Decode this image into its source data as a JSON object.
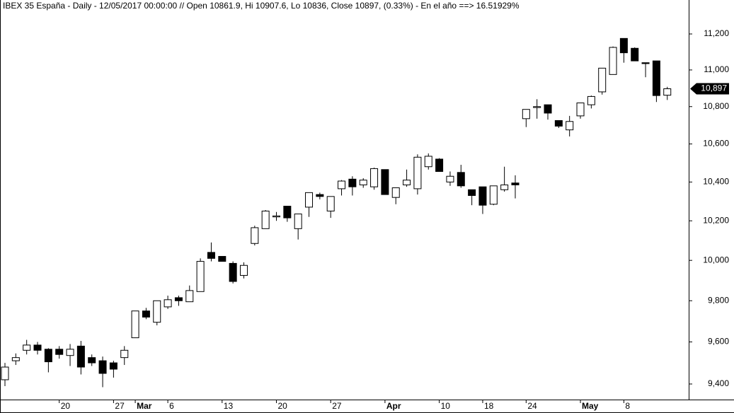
{
  "chart_data": {
    "type": "candlestick",
    "title": "IBEX 35 España - Daily - 12/05/2017 00:00:00 // Open 10861.9, Hi 10907.6, Lo 10836, Close 10897, (0.33%) - En el año ==> 16.51929%",
    "categories": [
      null,
      null,
      null,
      null,
      null,
      "20",
      null,
      null,
      null,
      null,
      "27",
      null,
      "Mar",
      null,
      null,
      "6",
      null,
      null,
      null,
      null,
      "13",
      null,
      null,
      null,
      null,
      "20",
      null,
      null,
      null,
      null,
      "27",
      null,
      null,
      null,
      null,
      "Apr",
      null,
      null,
      null,
      null,
      "10",
      null,
      null,
      null,
      "18",
      null,
      null,
      null,
      "24",
      null,
      null,
      null,
      null,
      "May",
      null,
      null,
      null,
      "8",
      null,
      null,
      null,
      null
    ],
    "open": [
      9420,
      9510,
      9560,
      9585,
      9565,
      9565,
      9535,
      9580,
      9525,
      9510,
      9500,
      9525,
      9620,
      9750,
      9695,
      9770,
      9815,
      9795,
      9845,
      10040,
      10020,
      9985,
      9925,
      10085,
      10160,
      10220,
      10275,
      10160,
      10270,
      10335,
      10250,
      10365,
      10415,
      10385,
      10375,
      10465,
      10320,
      10385,
      10365,
      10480,
      10520,
      10400,
      10450,
      10360,
      10375,
      10285,
      10360,
      10395,
      10735,
      10795,
      10810,
      10725,
      10675,
      10750,
      10810,
      10880,
      10975,
      11175,
      11120,
      11040,
      11050,
      10861.9
    ],
    "high": [
      9500,
      9545,
      9610,
      9600,
      9570,
      9580,
      9590,
      9605,
      9540,
      9530,
      9510,
      9580,
      9750,
      9765,
      9800,
      9825,
      9825,
      9875,
      10010,
      10090,
      10020,
      9995,
      9990,
      10175,
      10255,
      10245,
      10275,
      10235,
      10345,
      10345,
      10325,
      10410,
      10430,
      10420,
      10475,
      10465,
      10370,
      10465,
      10545,
      10550,
      10525,
      10455,
      10490,
      10360,
      10375,
      10380,
      10480,
      10435,
      10785,
      10840,
      10810,
      10725,
      10750,
      10820,
      10860,
      11010,
      11130,
      11175,
      11125,
      11040,
      11050,
      10907.6
    ],
    "low": [
      9390,
      9490,
      9540,
      9540,
      9455,
      9520,
      9485,
      9445,
      9485,
      9385,
      9430,
      9490,
      9620,
      9710,
      9680,
      9760,
      9775,
      9795,
      9845,
      9995,
      9995,
      9885,
      9910,
      10075,
      10160,
      10200,
      10195,
      10105,
      10220,
      10310,
      10215,
      10330,
      10330,
      10370,
      10360,
      10335,
      10285,
      10375,
      10335,
      10465,
      10455,
      10380,
      10370,
      10280,
      10235,
      10280,
      10350,
      10315,
      10690,
      10735,
      10730,
      10685,
      10640,
      10735,
      10790,
      10865,
      10975,
      11040,
      11050,
      10960,
      10825,
      10836
    ],
    "close": [
      9480,
      9525,
      9585,
      9560,
      9505,
      9540,
      9565,
      9480,
      9500,
      9450,
      9470,
      9560,
      9750,
      9720,
      9800,
      9805,
      9800,
      9850,
      9995,
      10010,
      9995,
      9895,
      9975,
      10165,
      10250,
      10225,
      10215,
      10235,
      10345,
      10325,
      10325,
      10405,
      10375,
      10410,
      10470,
      10335,
      10370,
      10410,
      10530,
      10535,
      10455,
      10430,
      10380,
      10330,
      10280,
      10380,
      10385,
      10385,
      10785,
      10800,
      10765,
      10695,
      10720,
      10820,
      10855,
      11010,
      11125,
      11095,
      11050,
      11035,
      10860,
      10897
    ],
    "up_color": "#ffffff",
    "down_color": "#000000",
    "log_scale": true,
    "ylim": [
      9327,
      11392
    ],
    "yticks": [
      {
        "value": 9400,
        "label": "9,400"
      },
      {
        "value": 9600,
        "label": "9,600"
      },
      {
        "value": 9800,
        "label": "9,800"
      },
      {
        "value": 10000,
        "label": "10,000"
      },
      {
        "value": 10200,
        "label": "10,200"
      },
      {
        "value": 10400,
        "label": "10,400"
      },
      {
        "value": 10600,
        "label": "10,600"
      },
      {
        "value": 10800,
        "label": "10,800"
      },
      {
        "value": 11000,
        "label": "11,000"
      },
      {
        "value": 11200,
        "label": "11,200"
      }
    ],
    "last_price": {
      "value": 10897,
      "label": "10,897"
    }
  }
}
